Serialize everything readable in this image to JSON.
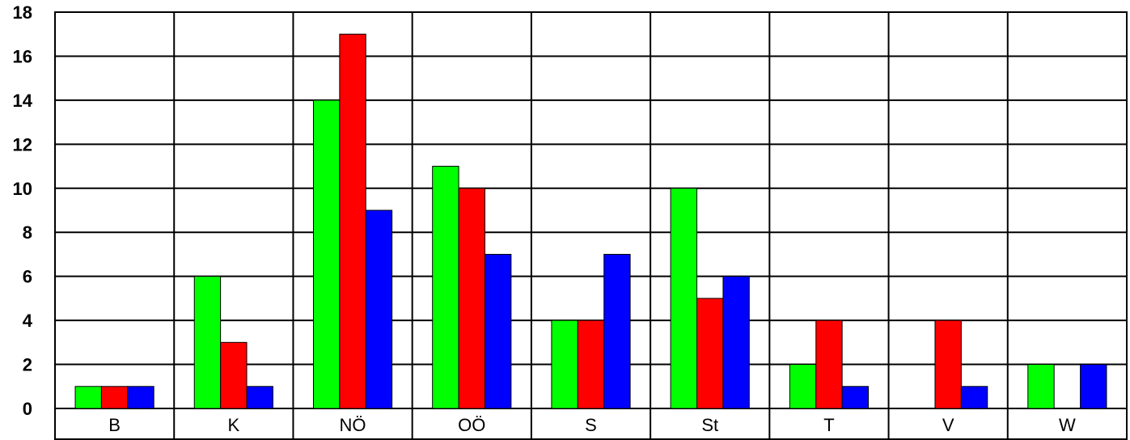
{
  "chart_data": {
    "type": "bar",
    "title": "",
    "xlabel": "",
    "ylabel": "",
    "ylim": [
      0,
      18
    ],
    "yticks": [
      0,
      2,
      4,
      6,
      8,
      10,
      12,
      14,
      16,
      18
    ],
    "grid": true,
    "legend": "none",
    "categories": [
      "B",
      "K",
      "NÖ",
      "OÖ",
      "S",
      "St",
      "T",
      "V",
      "W"
    ],
    "series": [
      {
        "color": "#00ff00",
        "values": [
          1,
          6,
          14,
          11,
          4,
          10,
          2,
          0,
          2
        ]
      },
      {
        "color": "#ff0000",
        "values": [
          1,
          3,
          17,
          10,
          4,
          5,
          4,
          4,
          0
        ]
      },
      {
        "color": "#0000ff",
        "values": [
          1,
          1,
          9,
          7,
          7,
          6,
          1,
          1,
          2
        ]
      }
    ]
  }
}
